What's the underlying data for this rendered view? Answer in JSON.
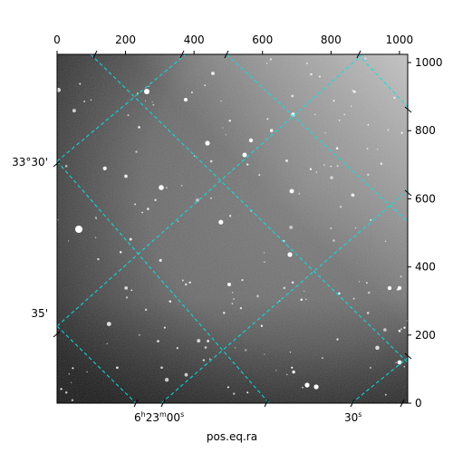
{
  "chart_data": {
    "type": "heatmap",
    "image": "astronomical-sky-image",
    "xlabel": "pos.eq.ra",
    "ylabel": "",
    "xlim": [
      0,
      1024
    ],
    "ylim": [
      0,
      1024
    ],
    "top_ticks": [
      "0",
      "200",
      "400",
      "600",
      "800",
      "1000"
    ],
    "top_tick_values": [
      0,
      200,
      400,
      600,
      800,
      1000
    ],
    "right_ticks": [
      "0",
      "200",
      "400",
      "600",
      "800",
      "1000"
    ],
    "right_tick_values": [
      0,
      200,
      400,
      600,
      800,
      1000
    ],
    "ra_labels": [
      "6h23m00s",
      "30s"
    ],
    "dec_labels": [
      "33°30'",
      "35'"
    ],
    "grid": true,
    "grid_color": "#00e5e5"
  },
  "axes": {
    "xlabel": "pos.eq.ra",
    "ra_label_main": "6",
    "ra_label_h": "h",
    "ra_label_min": "23",
    "ra_label_m": "m",
    "ra_label_sec": "00",
    "ra_label_s": "s",
    "ra_label2_num": "30",
    "ra_label2_s": "s",
    "dec_label1": "33°30'",
    "dec_label2": "35'"
  }
}
